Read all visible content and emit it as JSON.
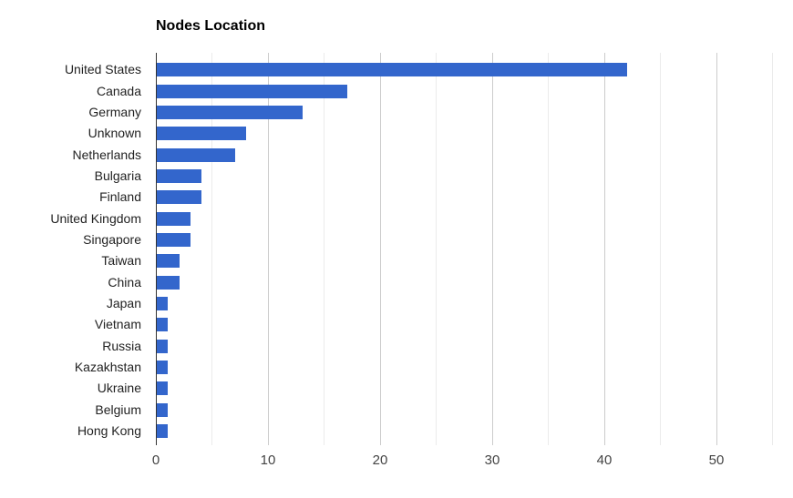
{
  "chart_data": {
    "type": "bar",
    "orientation": "horizontal",
    "title": "Nodes Location",
    "xlabel": "",
    "ylabel": "",
    "categories": [
      "United States",
      "Canada",
      "Germany",
      "Unknown",
      "Netherlands",
      "Bulgaria",
      "Finland",
      "United Kingdom",
      "Singapore",
      "Taiwan",
      "China",
      "Japan",
      "Vietnam",
      "Russia",
      "Kazakhstan",
      "Ukraine",
      "Belgium",
      "Hong Kong"
    ],
    "values": [
      42,
      17,
      13,
      8,
      7,
      4,
      4,
      3,
      3,
      2,
      2,
      1,
      1,
      1,
      1,
      1,
      1,
      1
    ],
    "xlim": [
      0,
      55
    ],
    "x_ticks": [
      0,
      10,
      20,
      30,
      40,
      50
    ],
    "grid": true,
    "minor_grid_step": 5,
    "legend": "none",
    "colors": {
      "bar": "#3366cc",
      "gridline_major": "#cccccc",
      "gridline_minor": "#ebebeb",
      "axis_line": "#333333",
      "category_label": "#222222",
      "tick_label": "#444444",
      "title": "#000000",
      "background": "#ffffff"
    }
  }
}
